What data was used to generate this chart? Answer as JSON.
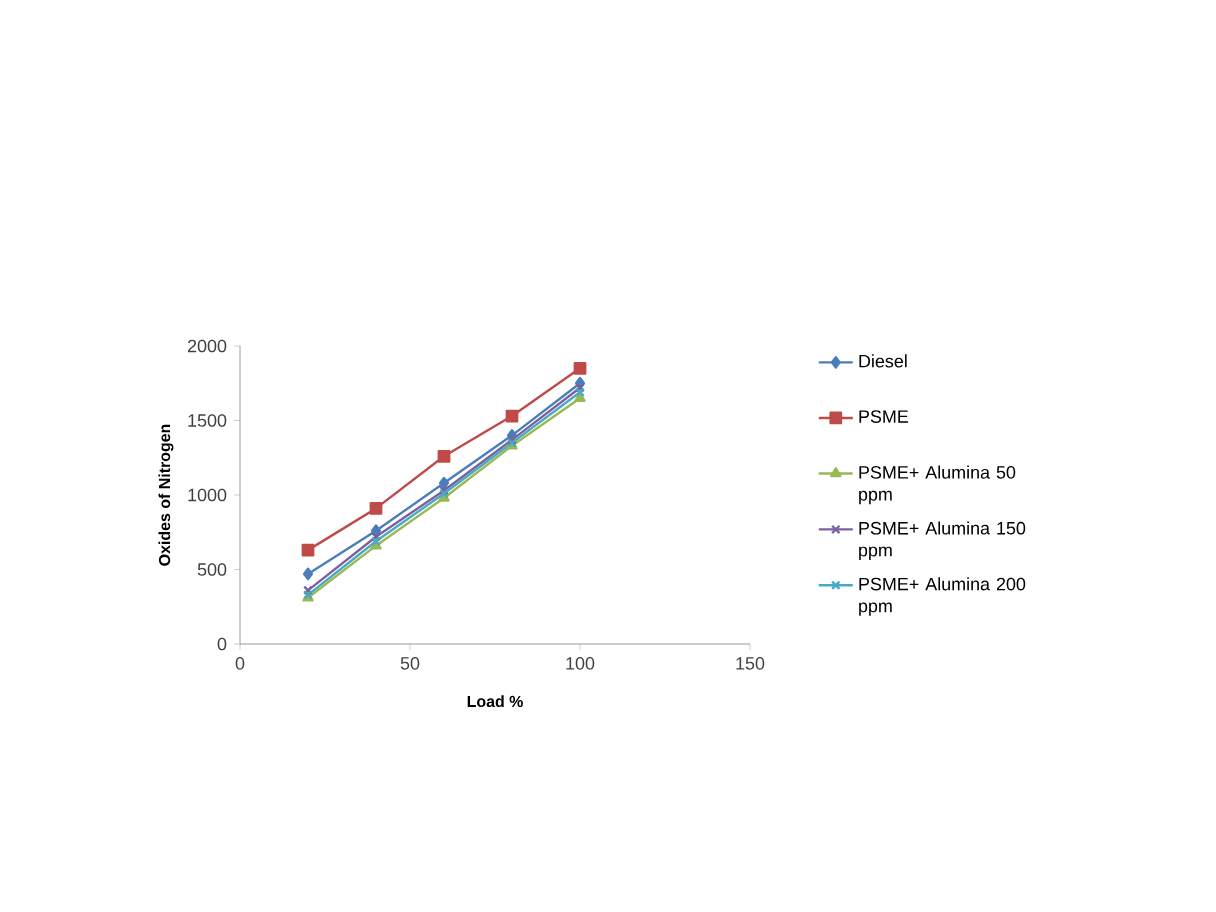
{
  "chart_data": {
    "type": "line",
    "xlabel": "Load %",
    "ylabel": "Oxides of Nitrogen",
    "x": [
      20,
      40,
      60,
      80,
      100
    ],
    "xlim": [
      0,
      150
    ],
    "xticks": [
      0,
      50,
      100,
      150
    ],
    "ylim": [
      0,
      2000
    ],
    "yticks": [
      0,
      500,
      1000,
      1500,
      2000
    ],
    "grid": false,
    "legend": "right",
    "series": [
      {
        "name": "Diesel",
        "color": "#4a7ebb",
        "marker": "diamond",
        "values": [
          470,
          760,
          1080,
          1400,
          1750
        ]
      },
      {
        "name": "PSME",
        "color": "#be4b48",
        "marker": "square",
        "values": [
          630,
          910,
          1260,
          1530,
          1850
        ]
      },
      {
        "name": "PSME+ Alumina 50 ppm",
        "color": "#98b954",
        "marker": "triangle",
        "values": [
          310,
          660,
          980,
          1330,
          1650
        ]
      },
      {
        "name": "PSME+ Alumina 150 ppm",
        "color": "#7d60a0",
        "marker": "cross",
        "values": [
          360,
          720,
          1030,
          1370,
          1720
        ]
      },
      {
        "name": "PSME+ Alumina 200 ppm",
        "color": "#46aac5",
        "marker": "cross",
        "values": [
          330,
          690,
          1010,
          1350,
          1690
        ]
      }
    ]
  }
}
